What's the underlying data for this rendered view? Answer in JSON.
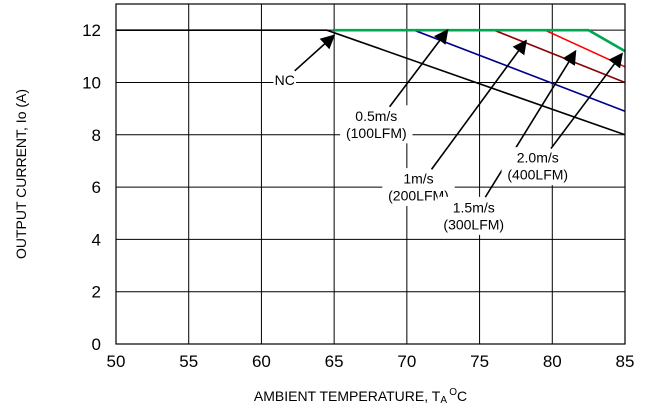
{
  "chart_data": {
    "type": "line",
    "xlabel": "AMBIENT TEMPERATURE, T",
    "xlabel_sub": "A",
    "xlabel_sup": "O",
    "xlabel_unit": "C",
    "ylabel": "OUTPUT CURRENT, Io  (A)",
    "xlim": [
      50,
      85
    ],
    "ylim": [
      0,
      13
    ],
    "x_ticks": [
      "50",
      "55",
      "60",
      "65",
      "70",
      "75",
      "80",
      "85"
    ],
    "y_ticks": [
      "0",
      "2",
      "4",
      "6",
      "8",
      "10",
      "12"
    ],
    "grid": true,
    "series": [
      {
        "color": "#000000",
        "x": [
          50,
          64.5,
          85
        ],
        "y": [
          12,
          12,
          8.0
        ]
      },
      {
        "color": "#00008b",
        "x": [
          65,
          70.5,
          85
        ],
        "y": [
          12,
          12,
          8.9
        ]
      },
      {
        "color": "#8b0000",
        "x": [
          65,
          76,
          85
        ],
        "y": [
          12,
          12,
          10.0
        ]
      },
      {
        "color": "#ff0000",
        "x": [
          65,
          79.5,
          85
        ],
        "y": [
          12,
          12,
          10.6
        ]
      },
      {
        "color": "#00a651",
        "x": [
          65,
          82.5,
          85
        ],
        "y": [
          12,
          12,
          11.2
        ]
      }
    ],
    "annotations": [
      {
        "lines": [
          "NC"
        ],
        "tx": 61.6,
        "ty": 10.1,
        "ax": 65.0,
        "ay": 11.8
      },
      {
        "lines": [
          "0.5m/s",
          "(100LFM)"
        ],
        "tx": 67.9,
        "ty": 8.4,
        "ax": 72.8,
        "ay": 12.0
      },
      {
        "lines": [
          "1m/s",
          "(200LFM)"
        ],
        "tx": 70.8,
        "ty": 6.0,
        "ax": 78.2,
        "ay": 11.6
      },
      {
        "lines": [
          "1.5m/s",
          "(300LFM)"
        ],
        "tx": 74.6,
        "ty": 4.9,
        "ax": 81.6,
        "ay": 11.2
      },
      {
        "lines": [
          "2.0m/s",
          "(400LFM)"
        ],
        "tx": 79.0,
        "ty": 6.8,
        "ax": 84.8,
        "ay": 11.1
      }
    ]
  }
}
